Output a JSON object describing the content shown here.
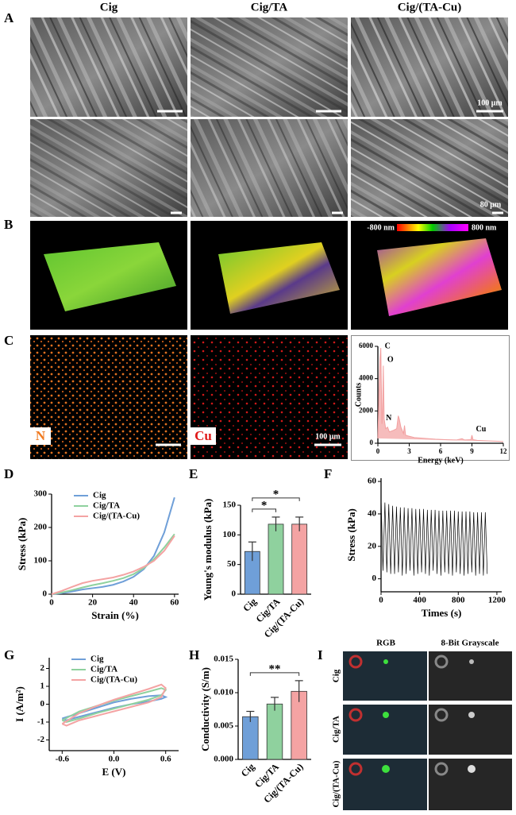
{
  "column_headers": [
    "Cig",
    "Cig/TA",
    "Cig/(TA-Cu)"
  ],
  "panel_labels": [
    "A",
    "B",
    "C",
    "D",
    "E",
    "F",
    "G",
    "H",
    "I"
  ],
  "sem": {
    "scale_labels": [
      "100 μm",
      "80 μm"
    ]
  },
  "afm": {
    "colorbar_min": "-800 nm",
    "colorbar_max": "800 nm"
  },
  "eds_maps": {
    "elements": [
      "N",
      "Cu"
    ],
    "scale_label": "100 μm"
  },
  "photos": {
    "column_headers": [
      "RGB",
      "8-Bit Grayscale"
    ],
    "row_labels": [
      "Cig",
      "Cig/TA",
      "Cig/(TA-Cu)"
    ]
  },
  "chart_data": [
    {
      "type": "area",
      "x_label": "Energy (keV)",
      "y_label": "Counts",
      "color": "#f2a0a0",
      "xlim": [
        0,
        12
      ],
      "xticks": [
        0,
        3,
        6,
        9,
        12
      ],
      "ylim": [
        0,
        6000
      ],
      "yticks": [
        0,
        2000,
        4000,
        6000
      ],
      "x": [
        0,
        0.1,
        0.2,
        0.28,
        0.35,
        0.39,
        0.45,
        0.52,
        0.6,
        0.75,
        0.93,
        1.1,
        1.5,
        1.8,
        1.95,
        2.05,
        2.2,
        2.45,
        2.55,
        2.65,
        2.9,
        3.5,
        4.5,
        5.5,
        6.5,
        7.5,
        8.05,
        8.3,
        8.9,
        9.0,
        9.1,
        9.5,
        10.5,
        11.5,
        12
      ],
      "values": [
        300,
        3000,
        5200,
        5900,
        2800,
        1200,
        2000,
        4800,
        1500,
        900,
        1000,
        700,
        800,
        900,
        1700,
        1500,
        1000,
        600,
        1100,
        500,
        450,
        350,
        300,
        250,
        220,
        200,
        280,
        200,
        220,
        500,
        220,
        180,
        150,
        120,
        100
      ],
      "annotations": [
        {
          "text": "C",
          "x": 0.28
        },
        {
          "text": "O",
          "x": 0.52
        },
        {
          "text": "N",
          "x": 0.39
        },
        {
          "text": "Cu",
          "x": 9.0
        }
      ]
    },
    {
      "type": "line",
      "x_label": "Strain (%)",
      "y_label": "Stress (kPa)",
      "xlim": [
        0,
        62
      ],
      "xticks": [
        0,
        20,
        40,
        60
      ],
      "ylim": [
        0,
        300
      ],
      "yticks": [
        0,
        100,
        200,
        300
      ],
      "x": [
        0,
        5,
        10,
        15,
        20,
        25,
        30,
        35,
        40,
        45,
        50,
        55,
        60
      ],
      "series": [
        {
          "name": "Cig",
          "color": "#6f9fd8",
          "values": [
            0,
            3,
            8,
            14,
            18,
            22,
            28,
            38,
            52,
            75,
            115,
            185,
            290
          ]
        },
        {
          "name": "Cig/TA",
          "color": "#8fd19e",
          "values": [
            0,
            5,
            12,
            20,
            27,
            33,
            40,
            48,
            60,
            78,
            105,
            140,
            180
          ]
        },
        {
          "name": "Cig/(TA-Cu)",
          "color": "#f4a3a3",
          "values": [
            0,
            10,
            22,
            33,
            40,
            45,
            50,
            58,
            68,
            82,
            100,
            130,
            175
          ]
        }
      ]
    },
    {
      "type": "bar",
      "y_label": "Young's modulus (kPa)",
      "categories": [
        "Cig",
        "Cig/TA",
        "Cig/(TA-Cu)"
      ],
      "values": [
        72,
        118,
        118
      ],
      "errors": [
        16,
        12,
        12
      ],
      "colors": [
        "#6f9fd8",
        "#8fd19e",
        "#f4a3a3"
      ],
      "ylim": [
        0,
        150
      ],
      "yticks": [
        0,
        50,
        100,
        150
      ],
      "significance": [
        {
          "label": "*",
          "between": [
            0,
            1
          ]
        },
        {
          "label": "*",
          "between": [
            0,
            2
          ]
        }
      ]
    },
    {
      "type": "line",
      "x_label": "Times (s)",
      "y_label": "Stress (kPa)",
      "color": "#000000",
      "xlim": [
        0,
        1250
      ],
      "xticks": [
        0,
        400,
        800,
        1200
      ],
      "ylim": [
        -8,
        62
      ],
      "yticks": [
        0,
        20,
        40,
        60
      ],
      "x": [
        0,
        20,
        40,
        60,
        80,
        100,
        120,
        140,
        160,
        180,
        200,
        220,
        240,
        260,
        280,
        300,
        320,
        340,
        360,
        380,
        400,
        420,
        440,
        460,
        480,
        500,
        520,
        540,
        560,
        580,
        600,
        620,
        640,
        660,
        680,
        700,
        720,
        740,
        760,
        780,
        800,
        820,
        840,
        860,
        880,
        900,
        920,
        940,
        960,
        980,
        1000,
        1020,
        1040,
        1060,
        1080,
        1100
      ],
      "values": [
        50,
        5,
        47,
        4,
        46,
        3,
        45,
        3,
        44.5,
        4,
        44,
        2,
        44,
        3,
        43.5,
        5,
        43.5,
        2,
        43,
        3,
        43,
        4,
        43,
        3,
        42.5,
        2,
        42.5,
        5,
        42.5,
        3,
        42,
        2,
        42,
        4,
        42,
        3,
        42,
        2,
        42,
        4,
        41.5,
        3,
        41.5,
        2,
        41.5,
        3,
        41.5,
        4,
        41,
        2,
        41,
        3,
        41,
        2,
        41,
        3
      ]
    },
    {
      "type": "line",
      "x_label": "E (V)",
      "y_label": "I (A/m²)",
      "xlim": [
        -0.75,
        0.75
      ],
      "xticks": [
        -0.6,
        {
          "value": 0,
          "label": "0.0"
        },
        0.6
      ],
      "ylim": [
        -2.6,
        2.6
      ],
      "yticks": [
        -2,
        -1,
        0,
        1,
        2
      ],
      "x": [
        -0.6,
        -0.4,
        -0.2,
        0,
        0.2,
        0.4,
        0.55,
        0.6,
        0.55,
        0.4,
        0.2,
        0,
        -0.2,
        -0.4,
        -0.55,
        -0.6
      ],
      "series": [
        {
          "name": "Cig",
          "color": "#6f9fd8",
          "values": [
            -0.8,
            -0.5,
            -0.2,
            0.1,
            0.3,
            0.45,
            0.5,
            0.4,
            0.3,
            0.15,
            0,
            -0.2,
            -0.45,
            -0.7,
            -0.9,
            -0.8
          ]
        },
        {
          "name": "Cig/TA",
          "color": "#8fd19e",
          "values": [
            -0.9,
            -0.4,
            -0.1,
            0.2,
            0.45,
            0.7,
            0.9,
            0.8,
            0.5,
            0.25,
            0,
            -0.25,
            -0.5,
            -0.8,
            -1.0,
            -0.9
          ]
        },
        {
          "name": "Cig/(TA-Cu)",
          "color": "#f4a3a3",
          "values": [
            -1.1,
            -0.5,
            -0.1,
            0.25,
            0.55,
            0.85,
            1.1,
            0.9,
            0.4,
            0.1,
            -0.15,
            -0.4,
            -0.65,
            -0.9,
            -1.2,
            -1.1
          ]
        }
      ]
    },
    {
      "type": "bar",
      "y_label": "Conductivity (S/m)",
      "categories": [
        "Cig",
        "Cig/TA",
        "Cig/(TA-Cu)"
      ],
      "values": [
        0.0064,
        0.0083,
        0.0102
      ],
      "errors": [
        0.0008,
        0.001,
        0.0016
      ],
      "colors": [
        "#6f9fd8",
        "#8fd19e",
        "#f4a3a3"
      ],
      "ylim": [
        0,
        0.015
      ],
      "yticks": [
        {
          "value": 0,
          "label": "0.000"
        },
        {
          "value": 0.005,
          "label": "0.005"
        },
        {
          "value": 0.01,
          "label": "0.010"
        },
        {
          "value": 0.015,
          "label": "0.015"
        }
      ],
      "significance": [
        {
          "label": "**",
          "between": [
            0,
            2
          ]
        }
      ]
    }
  ]
}
